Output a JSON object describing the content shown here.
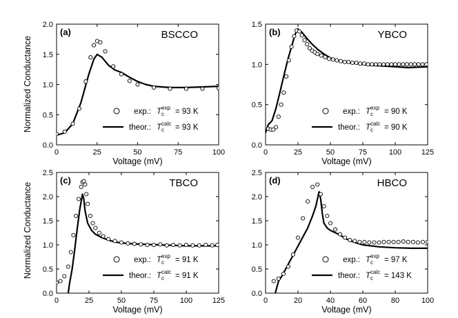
{
  "shared": {
    "ylabel": "Normalized Conductance",
    "xlabel": "Voltage (mV)"
  },
  "chart_data": [
    {
      "type": "line",
      "panel_label": "(a)",
      "compound": "BSCCO",
      "xlabel": "Voltage (mV)",
      "ylabel": "Normalized Conductance",
      "xlim": [
        0,
        100
      ],
      "ylim": [
        0.0,
        2.0
      ],
      "xticks": [
        "0",
        "25",
        "50",
        "75",
        "100"
      ],
      "yticks": [
        "0.0",
        "0.5",
        "1.0",
        "1.5",
        "2.0"
      ],
      "legend": {
        "exp_prefix": "exp.:",
        "exp_T": "T",
        "exp_sub": "c",
        "exp_sup": "exp",
        "exp_value": "= 93 K",
        "theor_prefix": "theor.:",
        "theor_T": "T",
        "theor_sub": "c",
        "theor_sup": "calc",
        "theor_value": "= 93 K"
      },
      "series": [
        {
          "name": "exp.",
          "style": "open-circles",
          "x": [
            0,
            5,
            10,
            14,
            18,
            21,
            23,
            25,
            27,
            30,
            35,
            40,
            45,
            50,
            60,
            70,
            80,
            90,
            100
          ],
          "y": [
            0.18,
            0.22,
            0.35,
            0.6,
            1.05,
            1.45,
            1.65,
            1.72,
            1.7,
            1.55,
            1.3,
            1.17,
            1.06,
            1.0,
            0.95,
            0.93,
            0.93,
            0.93,
            0.94
          ]
        },
        {
          "name": "theor.",
          "style": "line",
          "x": [
            0,
            5,
            10,
            15,
            20,
            23,
            25,
            28,
            32,
            36,
            40,
            45,
            50,
            55,
            60,
            70,
            80,
            90,
            100
          ],
          "y": [
            0.16,
            0.2,
            0.35,
            0.7,
            1.18,
            1.42,
            1.5,
            1.45,
            1.32,
            1.24,
            1.2,
            1.12,
            1.05,
            1.0,
            0.97,
            0.95,
            0.95,
            0.96,
            0.97
          ]
        }
      ]
    },
    {
      "type": "line",
      "panel_label": "(b)",
      "compound": "YBCO",
      "xlabel": "Voltage (mV)",
      "ylabel": "",
      "xlim": [
        0,
        125
      ],
      "ylim": [
        0.0,
        1.5
      ],
      "xticks": [
        "0",
        "25",
        "50",
        "75",
        "100",
        "125"
      ],
      "yticks": [
        "0.0",
        "0.5",
        "1.0",
        "1.5"
      ],
      "legend": {
        "exp_prefix": "exp.:",
        "exp_T": "T",
        "exp_sub": "c",
        "exp_sup": "exp",
        "exp_value": "= 90 K",
        "theor_prefix": "theor.:",
        "theor_T": "T",
        "theor_sub": "c",
        "theor_sup": "calc",
        "theor_value": "= 90 K"
      },
      "series": [
        {
          "name": "exp.",
          "style": "open-circles",
          "x": [
            2,
            4,
            6,
            8,
            10,
            12,
            14,
            16,
            18,
            20,
            22,
            24,
            26,
            28,
            30,
            32,
            34,
            36,
            38,
            40,
            43,
            46,
            49,
            52,
            55,
            58,
            61,
            64,
            67,
            70,
            73,
            76,
            79,
            82,
            85,
            88,
            91,
            94,
            97,
            100,
            103,
            106,
            109,
            112,
            115,
            118,
            121,
            124
          ],
          "y": [
            0.2,
            0.19,
            0.19,
            0.22,
            0.35,
            0.5,
            0.65,
            0.85,
            1.05,
            1.22,
            1.35,
            1.42,
            1.41,
            1.36,
            1.3,
            1.25,
            1.2,
            1.17,
            1.15,
            1.13,
            1.11,
            1.09,
            1.07,
            1.06,
            1.05,
            1.04,
            1.03,
            1.03,
            1.02,
            1.02,
            1.01,
            1.01,
            1.0,
            1.0,
            1.0,
            1.0,
            1.0,
            1.0,
            1.0,
            1.0,
            1.0,
            1.0,
            1.0,
            1.0,
            1.0,
            1.0,
            1.0,
            1.0
          ]
        },
        {
          "name": "theor.",
          "style": "line",
          "x": [
            0,
            2,
            5,
            8,
            11,
            14,
            17,
            20,
            23,
            25,
            28,
            32,
            36,
            40,
            45,
            50,
            55,
            60,
            70,
            80,
            90,
            100,
            110,
            125
          ],
          "y": [
            0.15,
            0.25,
            0.3,
            0.45,
            0.65,
            0.85,
            1.05,
            1.22,
            1.38,
            1.44,
            1.4,
            1.32,
            1.25,
            1.19,
            1.13,
            1.08,
            1.05,
            1.03,
            1.01,
            0.99,
            0.98,
            0.97,
            0.96,
            0.97
          ]
        }
      ]
    },
    {
      "type": "line",
      "panel_label": "(c)",
      "compound": "TBCO",
      "xlabel": "Voltage (mV)",
      "ylabel": "Normalized Conductance",
      "xlim": [
        0,
        125
      ],
      "ylim": [
        0.0,
        2.5
      ],
      "xticks": [
        "0",
        "25",
        "50",
        "75",
        "100",
        "125"
      ],
      "yticks": [
        "0.0",
        "0.5",
        "1.0",
        "1.5",
        "2.0",
        "2.5"
      ],
      "legend": {
        "exp_prefix": "exp.:",
        "exp_T": "T",
        "exp_sub": "c",
        "exp_sup": "exp",
        "exp_value": "= 91 K",
        "theor_prefix": "theor.:",
        "theor_T": "T",
        "theor_sub": "c",
        "theor_sup": "calc",
        "theor_value": "= 91 K"
      },
      "series": [
        {
          "name": "exp.",
          "style": "open-circles",
          "x": [
            0,
            3,
            6,
            9,
            11,
            13,
            15,
            17,
            19,
            20,
            21,
            22,
            23,
            24,
            26,
            28,
            30,
            33,
            36,
            40,
            45,
            50,
            55,
            60,
            65,
            70,
            75,
            80,
            85,
            90,
            95,
            100,
            105,
            110,
            115,
            120,
            124
          ],
          "y": [
            0.22,
            0.25,
            0.35,
            0.55,
            0.85,
            1.2,
            1.6,
            1.95,
            2.2,
            2.3,
            2.32,
            2.25,
            2.05,
            1.85,
            1.6,
            1.45,
            1.35,
            1.25,
            1.18,
            1.12,
            1.08,
            1.05,
            1.03,
            1.02,
            1.01,
            1.0,
            1.0,
            1.01,
            0.99,
            1.0,
            0.99,
            1.0,
            0.99,
            0.99,
            1.0,
            0.99,
            1.0
          ]
        },
        {
          "name": "theor.",
          "style": "line",
          "x": [
            9,
            10,
            12,
            14,
            16,
            18,
            20,
            21,
            22,
            24,
            27,
            30,
            35,
            40,
            45,
            50,
            60,
            70,
            80,
            90,
            100,
            110,
            125
          ],
          "y": [
            0.0,
            0.2,
            0.5,
            0.9,
            1.35,
            1.75,
            2.05,
            1.95,
            1.7,
            1.45,
            1.3,
            1.22,
            1.15,
            1.1,
            1.06,
            1.04,
            1.02,
            1.01,
            1.0,
            0.99,
            0.98,
            0.98,
            0.98
          ]
        }
      ]
    },
    {
      "type": "line",
      "panel_label": "(d)",
      "compound": "HBCO",
      "xlabel": "Voltage (mV)",
      "ylabel": "",
      "xlim": [
        0,
        100
      ],
      "ylim": [
        0.0,
        2.5
      ],
      "xticks": [
        "0",
        "20",
        "40",
        "60",
        "80",
        "100"
      ],
      "yticks": [
        "0.0",
        "0.5",
        "1.0",
        "1.5",
        "2.0",
        "2.5"
      ],
      "legend": {
        "exp_prefix": "exp.:",
        "exp_T": "T",
        "exp_sub": "c",
        "exp_sup": "exp",
        "exp_value": "= 97 K",
        "theor_prefix": "theor.:",
        "theor_T": "T",
        "theor_sub": "c",
        "theor_sup": "calc",
        "theor_value": "= 143 K"
      },
      "series": [
        {
          "name": "exp.",
          "style": "open-circles",
          "x": [
            5,
            8,
            11,
            14,
            17,
            20,
            23,
            26,
            29,
            32,
            34,
            36,
            38,
            40,
            43,
            46,
            49,
            52,
            55,
            58,
            61,
            64,
            67,
            70,
            73,
            76,
            79,
            82,
            85,
            88,
            91,
            94,
            97,
            100
          ],
          "y": [
            0.25,
            0.3,
            0.4,
            0.55,
            0.8,
            1.15,
            1.55,
            1.9,
            2.2,
            2.25,
            2.05,
            1.8,
            1.6,
            1.45,
            1.32,
            1.22,
            1.15,
            1.1,
            1.08,
            1.06,
            1.06,
            1.05,
            1.05,
            1.05,
            1.06,
            1.06,
            1.06,
            1.06,
            1.07,
            1.06,
            1.06,
            1.05,
            1.06,
            1.06
          ]
        },
        {
          "name": "theor.",
          "style": "line",
          "x": [
            6,
            8,
            10,
            14,
            18,
            22,
            26,
            29,
            31,
            32,
            33,
            34,
            35,
            36,
            38,
            40,
            45,
            50,
            55,
            60,
            70,
            80,
            90,
            100
          ],
          "y": [
            0.0,
            0.25,
            0.35,
            0.6,
            0.85,
            1.1,
            1.35,
            1.6,
            1.8,
            1.95,
            2.1,
            1.95,
            1.65,
            1.45,
            1.35,
            1.3,
            1.22,
            1.12,
            1.05,
            1.0,
            0.96,
            0.94,
            0.93,
            0.93
          ]
        }
      ]
    }
  ]
}
